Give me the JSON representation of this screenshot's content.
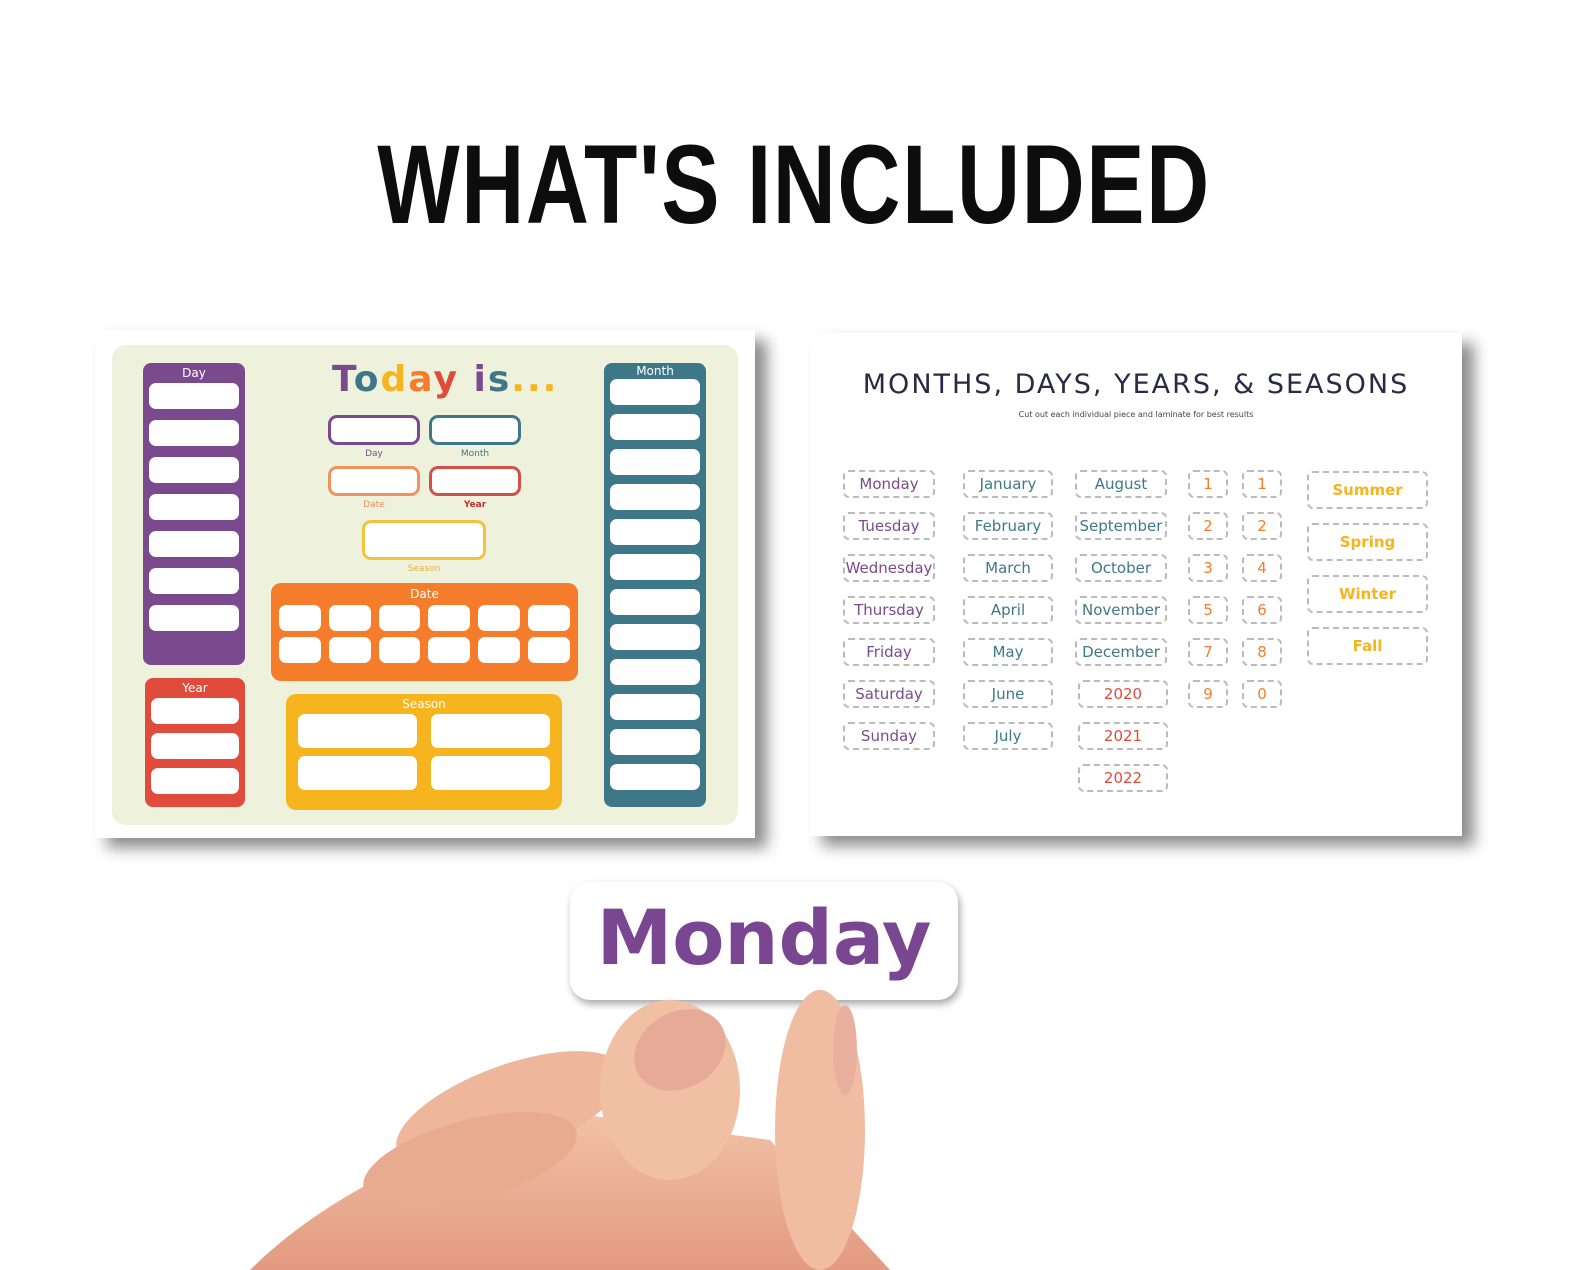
{
  "heading": "WHAT'S INCLUDED",
  "colors": {
    "purple": "#7b4a8e",
    "teal": "#3e7888",
    "orange": "#f47c2b",
    "red": "#e14b3b",
    "yellow": "#f6b41f"
  },
  "calendar_board": {
    "title_letters": [
      {
        "ch": "T",
        "color": "#7b4a8e"
      },
      {
        "ch": "o",
        "color": "#3e7888"
      },
      {
        "ch": "d",
        "color": "#f6b41f"
      },
      {
        "ch": "a",
        "color": "#f47c2b"
      },
      {
        "ch": "y",
        "color": "#e14b3b"
      },
      {
        "ch": " ",
        "color": "#000"
      },
      {
        "ch": "i",
        "color": "#7b4a8e"
      },
      {
        "ch": "s",
        "color": "#3e7888"
      },
      {
        "ch": "...",
        "color": "#f6b41f"
      }
    ],
    "day_label": "Day",
    "month_label": "Month",
    "year_label": "Year",
    "date_label": "Date",
    "season_label": "Season",
    "field_labels": {
      "day": "Day",
      "month": "Month",
      "date": "Date",
      "year": "Year",
      "season": "Season"
    }
  },
  "cutouts": {
    "title": "MONTHS, DAYS, YEARS, & SEASONS",
    "subtitle": "Cut out each individual piece and laminate for best results",
    "days": [
      "Monday",
      "Tuesday",
      "Wednesday",
      "Thursday",
      "Friday",
      "Saturday",
      "Sunday"
    ],
    "months_a": [
      "January",
      "February",
      "March",
      "April",
      "May",
      "June",
      "July"
    ],
    "months_b": [
      "August",
      "September",
      "October",
      "November",
      "December"
    ],
    "years": [
      "2020",
      "2021",
      "2022"
    ],
    "numbers_a": [
      "1",
      "2",
      "3",
      "5",
      "7",
      "9"
    ],
    "numbers_b": [
      "1",
      "2",
      "4",
      "6",
      "8",
      "0"
    ],
    "seasons": [
      "Summer",
      "Spring",
      "Winter",
      "Fall"
    ]
  },
  "held_card": {
    "label": "Monday"
  }
}
